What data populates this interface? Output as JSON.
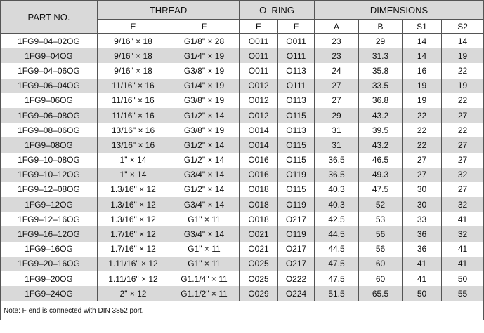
{
  "table": {
    "headers": {
      "part": "PART NO.",
      "thread": "THREAD",
      "oring": "O–RING",
      "dimensions": "DIMENSIONS"
    },
    "subheaders": [
      "E",
      "F",
      "E",
      "F",
      "A",
      "B",
      "S1",
      "S2"
    ],
    "rows": [
      [
        "1FG9–04–02OG",
        "9/16\" × 18",
        "G1/8\" × 28",
        "O011",
        "O011",
        "23",
        "29",
        "14",
        "14"
      ],
      [
        "1FG9–04OG",
        "9/16\" × 18",
        "G1/4\" × 19",
        "O011",
        "O111",
        "23",
        "31.3",
        "14",
        "19"
      ],
      [
        "1FG9–04–06OG",
        "9/16\" × 18",
        "G3/8\" × 19",
        "O011",
        "O113",
        "24",
        "35.8",
        "16",
        "22"
      ],
      [
        "1FG9–06–04OG",
        "11/16\" × 16",
        "G1/4\" × 19",
        "O012",
        "O111",
        "27",
        "33.5",
        "19",
        "19"
      ],
      [
        "1FG9–06OG",
        "11/16\" × 16",
        "G3/8\" × 19",
        "O012",
        "O113",
        "27",
        "36.8",
        "19",
        "22"
      ],
      [
        "1FG9–06–08OG",
        "11/16\" × 16",
        "G1/2\" × 14",
        "O012",
        "O115",
        "29",
        "43.2",
        "22",
        "27"
      ],
      [
        "1FG9–08–06OG",
        "13/16\" × 16",
        "G3/8\" × 19",
        "O014",
        "O113",
        "31",
        "39.5",
        "22",
        "22"
      ],
      [
        "1FG9–08OG",
        "13/16\" × 16",
        "G1/2\" × 14",
        "O014",
        "O115",
        "31",
        "43.2",
        "22",
        "27"
      ],
      [
        "1FG9–10–08OG",
        "1\" × 14",
        "G1/2\" × 14",
        "O016",
        "O115",
        "36.5",
        "46.5",
        "27",
        "27"
      ],
      [
        "1FG9–10–12OG",
        "1\" × 14",
        "G3/4\" × 14",
        "O016",
        "O119",
        "36.5",
        "49.3",
        "27",
        "32"
      ],
      [
        "1FG9–12–08OG",
        "1.3/16\" × 12",
        "G1/2\" × 14",
        "O018",
        "O115",
        "40.3",
        "47.5",
        "30",
        "27"
      ],
      [
        "1FG9–12OG",
        "1.3/16\" × 12",
        "G3/4\" × 14",
        "O018",
        "O119",
        "40.3",
        "52",
        "30",
        "32"
      ],
      [
        "1FG9–12–16OG",
        "1.3/16\" × 12",
        "G1\" × 11",
        "O018",
        "O217",
        "42.5",
        "53",
        "33",
        "41"
      ],
      [
        "1FG9–16–12OG",
        "1.7/16\" × 12",
        "G3/4\" × 14",
        "O021",
        "O119",
        "44.5",
        "56",
        "36",
        "32"
      ],
      [
        "1FG9–16OG",
        "1.7/16\" × 12",
        "G1\" × 11",
        "O021",
        "O217",
        "44.5",
        "56",
        "36",
        "41"
      ],
      [
        "1FG9–20–16OG",
        "1.11/16\" × 12",
        "G1\" × 11",
        "O025",
        "O217",
        "47.5",
        "60",
        "41",
        "41"
      ],
      [
        "1FG9–20OG",
        "1.11/16\" × 12",
        "G1.1/4\" × 11",
        "O025",
        "O222",
        "47.5",
        "60",
        "41",
        "50"
      ],
      [
        "1FG9–24OG",
        "2\" × 12",
        "G1.1/2\" × 11",
        "O029",
        "O224",
        "51.5",
        "65.5",
        "50",
        "55"
      ]
    ],
    "note": "Note: F end is connected with DIN 3852 port."
  }
}
